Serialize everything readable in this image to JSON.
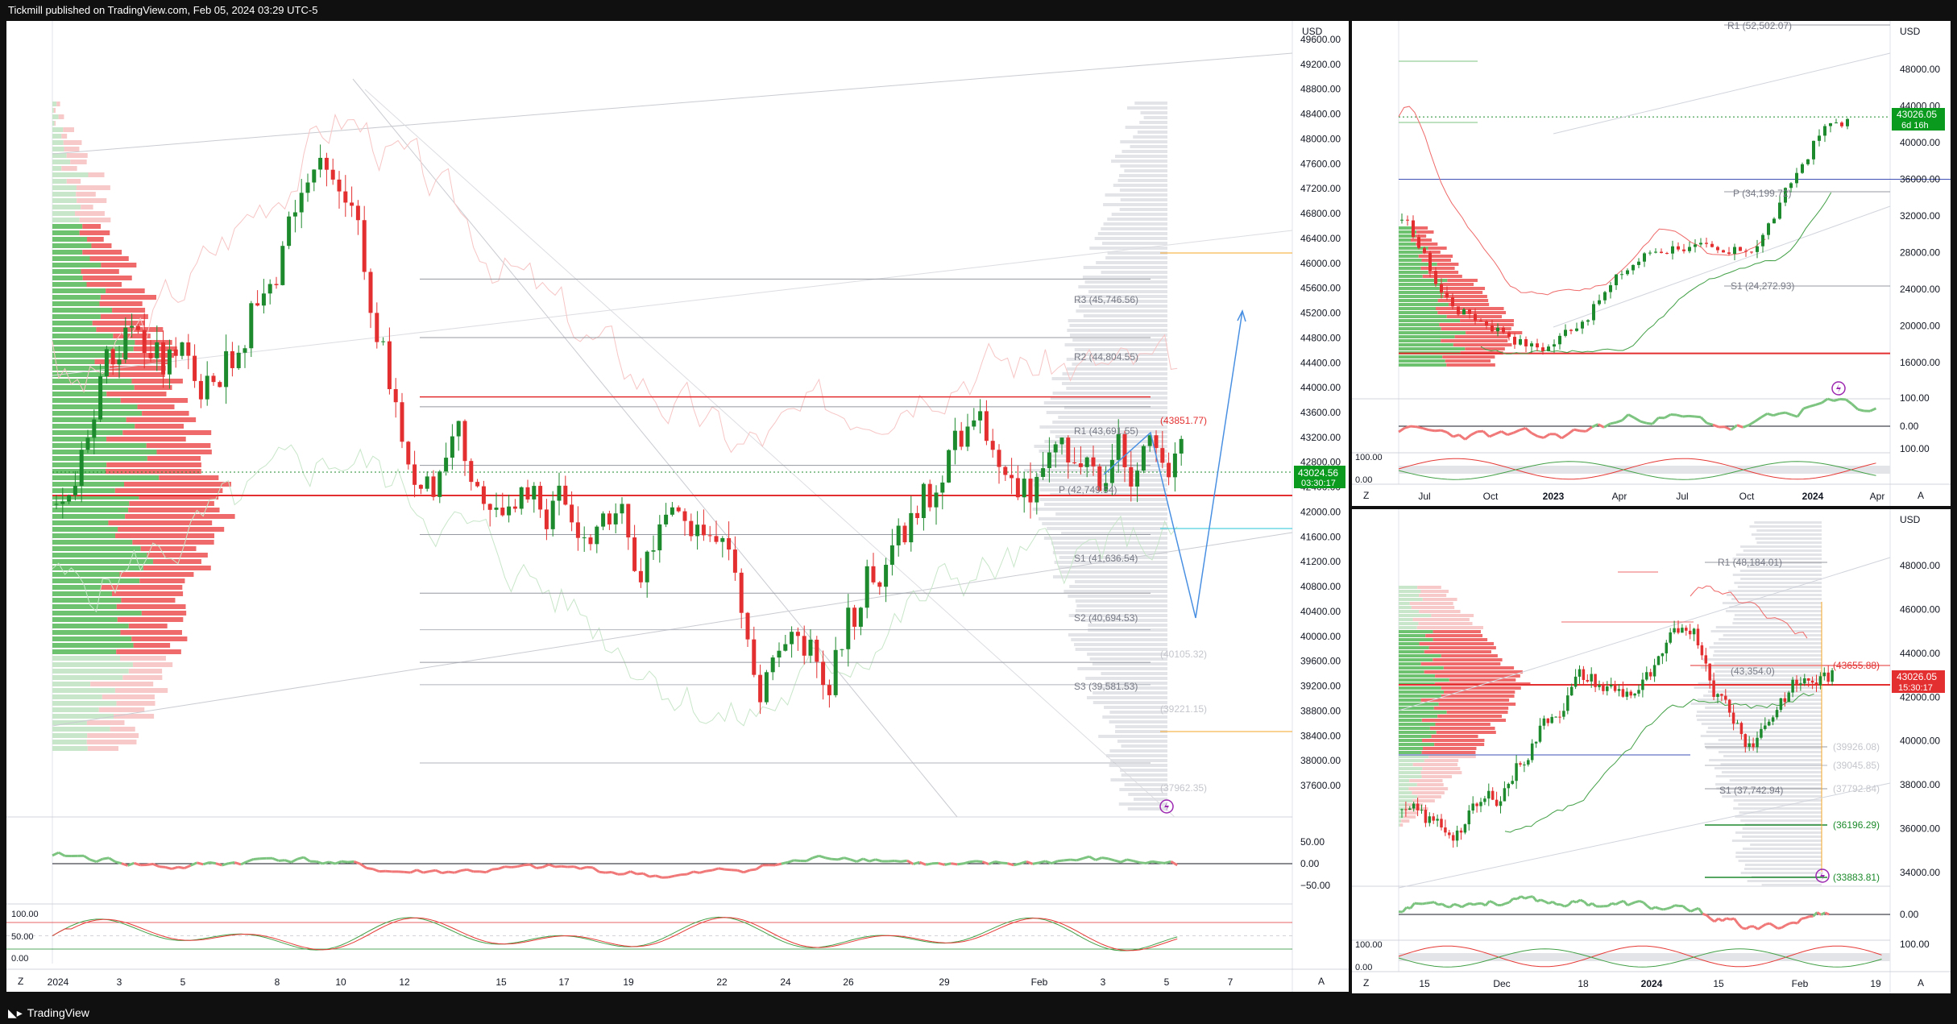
{
  "header": {
    "publisher_line": "Tickmill published on TradingView.com, Feb 05, 2024 03:29 UTC-5"
  },
  "footer": {
    "brand": "TradingView"
  },
  "colors": {
    "up": "#26a69a",
    "up_body": "#1e8a2e",
    "down": "#e32f2f",
    "accent_blue": "#2962ff",
    "level": "#9598a1"
  },
  "chart_data": [
    {
      "id": "main",
      "type": "candlestick",
      "currency": "USD",
      "last_price": "43024.56",
      "countdown": "03:30:17",
      "y_ticks": [
        "49600.00",
        "49200.00",
        "48800.00",
        "48400.00",
        "48000.00",
        "47600.00",
        "47200.00",
        "46800.00",
        "46400.00",
        "46000.00",
        "45600.00",
        "45200.00",
        "44800.00",
        "44400.00",
        "44000.00",
        "43600.00",
        "43200.00",
        "42800.00",
        "42400.00",
        "42000.00",
        "41600.00",
        "41200.00",
        "40800.00",
        "40400.00",
        "40000.00",
        "39600.00",
        "39200.00",
        "38800.00",
        "38400.00",
        "38000.00",
        "37600.00"
      ],
      "x_ticks": [
        "2024",
        "3",
        "5",
        "8",
        "10",
        "12",
        "15",
        "17",
        "19",
        "22",
        "24",
        "26",
        "29",
        "Feb",
        "3",
        "5",
        "7"
      ],
      "levels": [
        {
          "label": "R3 (45,746.56)",
          "price": 45746.56
        },
        {
          "label": "R2 (44,804.55)",
          "price": 44804.55
        },
        {
          "label": "(43851.77)",
          "price": 43851.77
        },
        {
          "label": "R1 (43,691.55)",
          "price": 43691.55
        },
        {
          "label": "P (42,749.54)",
          "price": 42749.54
        },
        {
          "label": "S1 (41,636.54)",
          "price": 41636.54
        },
        {
          "label": "S2 (40,694.53)",
          "price": 40694.53
        },
        {
          "label": "(40105.32)",
          "price": 40105.32
        },
        {
          "label": "S3 (39,581.53)",
          "price": 39581.53
        },
        {
          "label": "(39221.15)",
          "price": 39221.15
        },
        {
          "label": "(37962.35)",
          "price": 37962.35
        }
      ],
      "osc1_ticks": [
        "50.00",
        "0.00",
        "−50.00"
      ],
      "osc2_ticks": [
        "100.00",
        "50.00",
        "0.00"
      ]
    },
    {
      "id": "top-right",
      "type": "candlestick",
      "currency": "USD",
      "last_price": "43026.05",
      "countdown": "6d 16h",
      "y_ticks": [
        "48000.00",
        "44000.00",
        "40000.00",
        "36000.00",
        "32000.00",
        "28000.00",
        "24000.00",
        "20000.00",
        "16000.00"
      ],
      "x_ticks": [
        "Jul",
        "Oct",
        "2023",
        "Apr",
        "Jul",
        "Oct",
        "2024",
        "Apr"
      ],
      "levels": [
        {
          "label": "R1 (52,502.07)",
          "price": 52502.07
        },
        {
          "label": "P (34,199.72)",
          "price": 34199.72
        },
        {
          "label": "S1 (24,272.93)",
          "price": 24272.93
        }
      ],
      "osc1_ticks": [
        "100.00",
        "0.00"
      ],
      "osc2_ticks": [
        "100.00",
        "100.00",
        "0.00"
      ]
    },
    {
      "id": "bottom-right",
      "type": "candlestick",
      "currency": "USD",
      "last_price": "43026.05",
      "countdown": "15:30:17",
      "y_ticks": [
        "48000.00",
        "46000.00",
        "44000.00",
        "42000.00",
        "40000.00",
        "38000.00",
        "36000.00",
        "34000.00"
      ],
      "x_ticks": [
        "15",
        "Dec",
        "18",
        "2024",
        "15",
        "Feb",
        "19"
      ],
      "levels": [
        {
          "label": "R1 (48,184.01)",
          "price": 48184.01
        },
        {
          "label": "(43655.88)",
          "price": 43655.88
        },
        {
          "label": "(43,354.0)",
          "price": 43354.0
        },
        {
          "label": "(39926.08)",
          "price": 39926.08
        },
        {
          "label": "(39045.85)",
          "price": 39045.85
        },
        {
          "label": "(37792.84)",
          "price": 37792.84
        },
        {
          "label": "S1 (37,742.94)",
          "price": 37742.94
        },
        {
          "label": "(36196.29)",
          "price": 36196.29
        },
        {
          "label": "(33883.81)",
          "price": 33883.81
        }
      ],
      "osc1_ticks": [
        "0.00"
      ],
      "osc2_ticks": [
        "100.00",
        "100.00",
        "0.00"
      ]
    }
  ],
  "corner": {
    "z": "Z",
    "a": "A"
  }
}
